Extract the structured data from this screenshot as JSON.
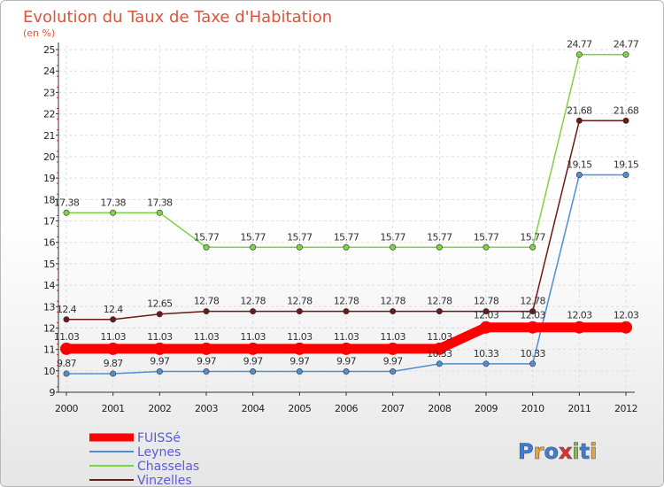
{
  "chart_data": {
    "type": "line",
    "title": "Evolution du Taux de Taxe d'Habitation",
    "subtitle": "(en %)",
    "x": [
      "2000",
      "2001",
      "2002",
      "2003",
      "2004",
      "2005",
      "2006",
      "2007",
      "2008",
      "2009",
      "2010",
      "2011",
      "2012"
    ],
    "yticks": [
      "9",
      "10",
      "11",
      "12",
      "13",
      "14",
      "15",
      "16",
      "17",
      "18",
      "19",
      "20",
      "21",
      "22",
      "23",
      "24",
      "25"
    ],
    "ylim": [
      9,
      25
    ],
    "grid": true,
    "legend_position": "bottom-left",
    "series": [
      {
        "name": "FUISSé",
        "color": "#ff0000",
        "values": [
          11.03,
          11.03,
          11.03,
          11.03,
          11.03,
          11.03,
          11.03,
          11.03,
          11.03,
          12.03,
          12.03,
          12.03,
          12.03
        ],
        "labels": [
          "11.03",
          "11.03",
          "11.03",
          "11.03",
          "11.03",
          "11.03",
          "11.03",
          "11.03",
          "11.03",
          "12.03",
          "12.03",
          "12.03",
          "12.03"
        ]
      },
      {
        "name": "Leynes",
        "color": "#4f8fd0",
        "values": [
          9.87,
          9.87,
          9.97,
          9.97,
          9.97,
          9.97,
          9.97,
          9.97,
          10.33,
          10.33,
          10.33,
          19.15,
          19.15
        ],
        "labels": [
          "9.87",
          "9.87",
          "9.97",
          "9.97",
          "9.97",
          "9.97",
          "9.97",
          "9.97",
          "10.33",
          "10.33",
          "10.33",
          "19.15",
          "19.15"
        ]
      },
      {
        "name": "Chasselas",
        "color": "#7cd444",
        "values": [
          17.38,
          17.38,
          17.38,
          15.77,
          15.77,
          15.77,
          15.77,
          15.77,
          15.77,
          15.77,
          15.77,
          24.77,
          24.77
        ],
        "labels": [
          "17.38",
          "17.38",
          "17.38",
          "15.77",
          "15.77",
          "15.77",
          "15.77",
          "15.77",
          "15.77",
          "15.77",
          "15.77",
          "24.77",
          "24.77"
        ]
      },
      {
        "name": "Vinzelles",
        "color": "#6b1a1a",
        "values": [
          12.4,
          12.4,
          12.65,
          12.78,
          12.78,
          12.78,
          12.78,
          12.78,
          12.78,
          12.78,
          12.78,
          21.68,
          21.68
        ],
        "labels": [
          "12.4",
          "12.4",
          "12.65",
          "12.78",
          "12.78",
          "12.78",
          "12.78",
          "12.78",
          "12.78",
          "12.78",
          "12.78",
          "21.68",
          "21.68"
        ]
      }
    ]
  },
  "logo": {
    "text": "Proxiti"
  }
}
